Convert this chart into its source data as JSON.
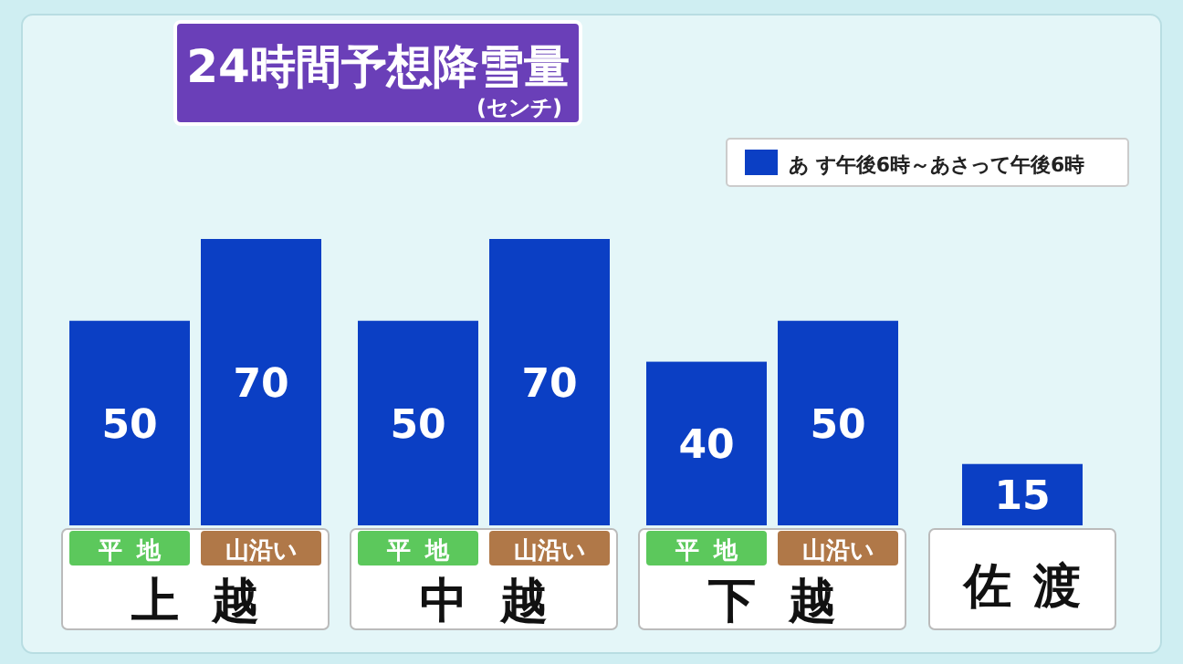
{
  "chart_data": {
    "type": "bar",
    "title": "24時間予想降雪量",
    "subtitle": "(センチ)",
    "categories": [
      "平地",
      "山沿い",
      "平地",
      "山沿い",
      "平地",
      "山沿い",
      null
    ],
    "series": [
      {
        "name": "あ す午後6時～あさって午後6時",
        "color": "#0b3fc4",
        "values": [
          50,
          70,
          50,
          70,
          40,
          50,
          15
        ]
      }
    ],
    "annotations": [
      "上越",
      "中越",
      "下越",
      "佐渡"
    ],
    "data_labels": true,
    "legend": "top right"
  }
}
